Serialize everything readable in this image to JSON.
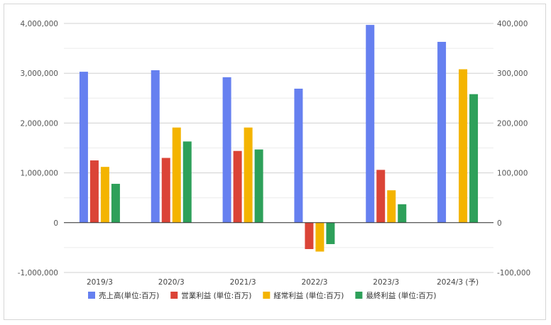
{
  "chart_data": {
    "type": "bar",
    "title": "",
    "xlabel": "",
    "ylabel": "",
    "categories": [
      "2019/3",
      "2020/3",
      "2021/3",
      "2022/3",
      "2023/3",
      "2024/3 (予)"
    ],
    "ylim_left": [
      -1000000,
      4000000
    ],
    "ylim_right": [
      -100000,
      400000
    ],
    "yticks_left": [
      "4,000,000",
      "3,000,000",
      "2,000,000",
      "1,000,000",
      "0",
      "-1,000,000"
    ],
    "yticks_right": [
      "400,000",
      "300,000",
      "200,000",
      "100,000",
      "0",
      "-100,000"
    ],
    "grid": true,
    "legend_position": "bottom",
    "series": [
      {
        "name": "売上高(単位:百万)",
        "axis": "left",
        "color": "#6680f0",
        "values": [
          3030000,
          3060000,
          2920000,
          2690000,
          3970000,
          3630000
        ]
      },
      {
        "name": "営業利益 (単位:百万)",
        "axis": "right",
        "color": "#db4437",
        "values": [
          125000,
          130000,
          144000,
          -53000,
          106000,
          null
        ]
      },
      {
        "name": "経常利益 (単位:百万)",
        "axis": "right",
        "color": "#f4b400",
        "values": [
          112000,
          191000,
          191000,
          -58000,
          65000,
          308000
        ]
      },
      {
        "name": "最終利益 (単位:百万)",
        "axis": "right",
        "color": "#2ea05a",
        "values": [
          78000,
          163000,
          147000,
          -43000,
          37000,
          258000
        ]
      }
    ]
  }
}
